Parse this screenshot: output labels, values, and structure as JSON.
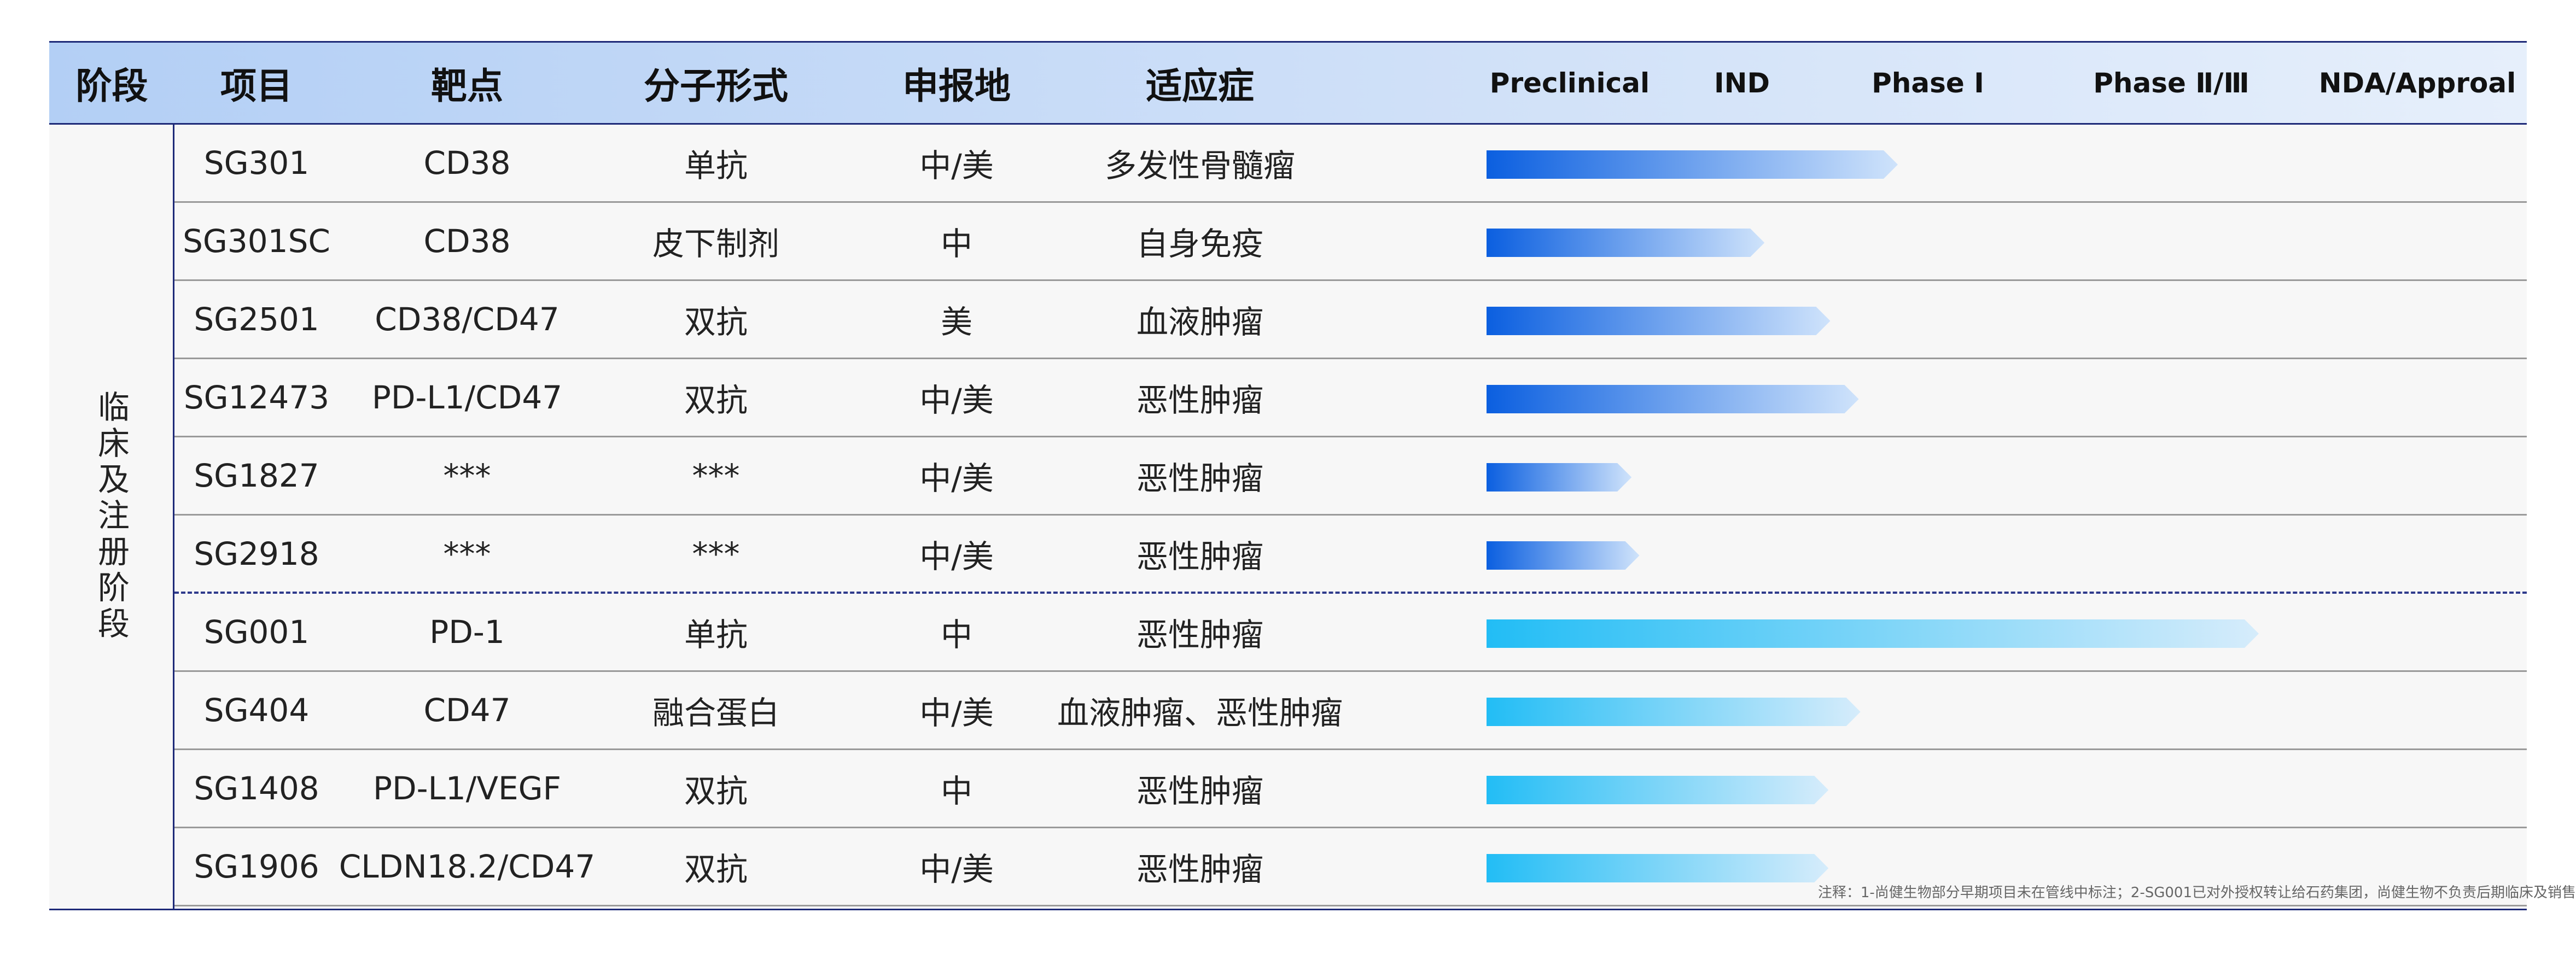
{
  "header": {
    "stage": "阶段",
    "project": "项目",
    "target": "靶点",
    "modality": "分子形式",
    "region": "申报地",
    "indication": "适应症",
    "phases": [
      "Preclinical",
      "IND",
      "Phase I",
      "Phase Ⅱ/Ⅲ",
      "NDA/Approal"
    ]
  },
  "stage_label": "临床及注册阶段",
  "colors": {
    "dark_blue_start": "#0b5fe0",
    "dark_blue_end": "#cfe3fb",
    "light_blue_start": "#22bdf5",
    "light_blue_end": "#d6ecfb",
    "header_border": "#1e2a78"
  },
  "chart_data": {
    "type": "table",
    "phases": [
      "Preclinical",
      "IND",
      "Phase I",
      "Phase Ⅱ/Ⅲ",
      "NDA/Approal"
    ],
    "rows": [
      {
        "project": "SG301",
        "target": "CD38",
        "modality": "单抗",
        "region": "中/美",
        "indication": "多发性骨髓瘤",
        "progress": 2.8,
        "color": "dark"
      },
      {
        "project": "SG301SC",
        "target": "CD38",
        "modality": "皮下制剂",
        "region": "中",
        "indication": "自身免疫",
        "progress": 2.05,
        "color": "dark"
      },
      {
        "project": "SG2501",
        "target": "CD38/CD47",
        "modality": "双抗",
        "region": "美",
        "indication": "血液肿瘤",
        "progress": 2.42,
        "color": "dark"
      },
      {
        "project": "SG12473",
        "target": "PD-L1/CD47",
        "modality": "双抗",
        "region": "中/美",
        "indication": "恶性肿瘤",
        "progress": 2.58,
        "color": "dark"
      },
      {
        "project": "SG1827",
        "target": "***",
        "modality": "***",
        "region": "中/美",
        "indication": "恶性肿瘤",
        "progress": 1.37,
        "color": "dark"
      },
      {
        "project": "SG2918",
        "target": "***",
        "modality": "***",
        "region": "中/美",
        "indication": "恶性肿瘤",
        "progress": 1.41,
        "color": "dark"
      },
      {
        "project": "SG001",
        "target": "PD-1",
        "modality": "单抗",
        "region": "中",
        "indication": "恶性肿瘤",
        "progress": 4.5,
        "color": "light"
      },
      {
        "project": "SG404",
        "target": "CD47",
        "modality": "融合蛋白",
        "region": "中/美",
        "indication": "血液肿瘤、恶性肿瘤",
        "progress": 2.59,
        "color": "light"
      },
      {
        "project": "SG1408",
        "target": "PD-L1/VEGF",
        "modality": "双抗",
        "region": "中",
        "indication": "恶性肿瘤",
        "progress": 2.41,
        "color": "light"
      },
      {
        "project": "SG1906",
        "target": "CLDN18.2/CD47",
        "modality": "双抗",
        "region": "中/美",
        "indication": "恶性肿瘤",
        "progress": 2.41,
        "color": "light"
      }
    ]
  },
  "note": "注释：1-尚健生物部分早期项目未在管线中标注；2-SG001已对外授权转让给石药集团，尚健生物不负责后期临床及销售"
}
